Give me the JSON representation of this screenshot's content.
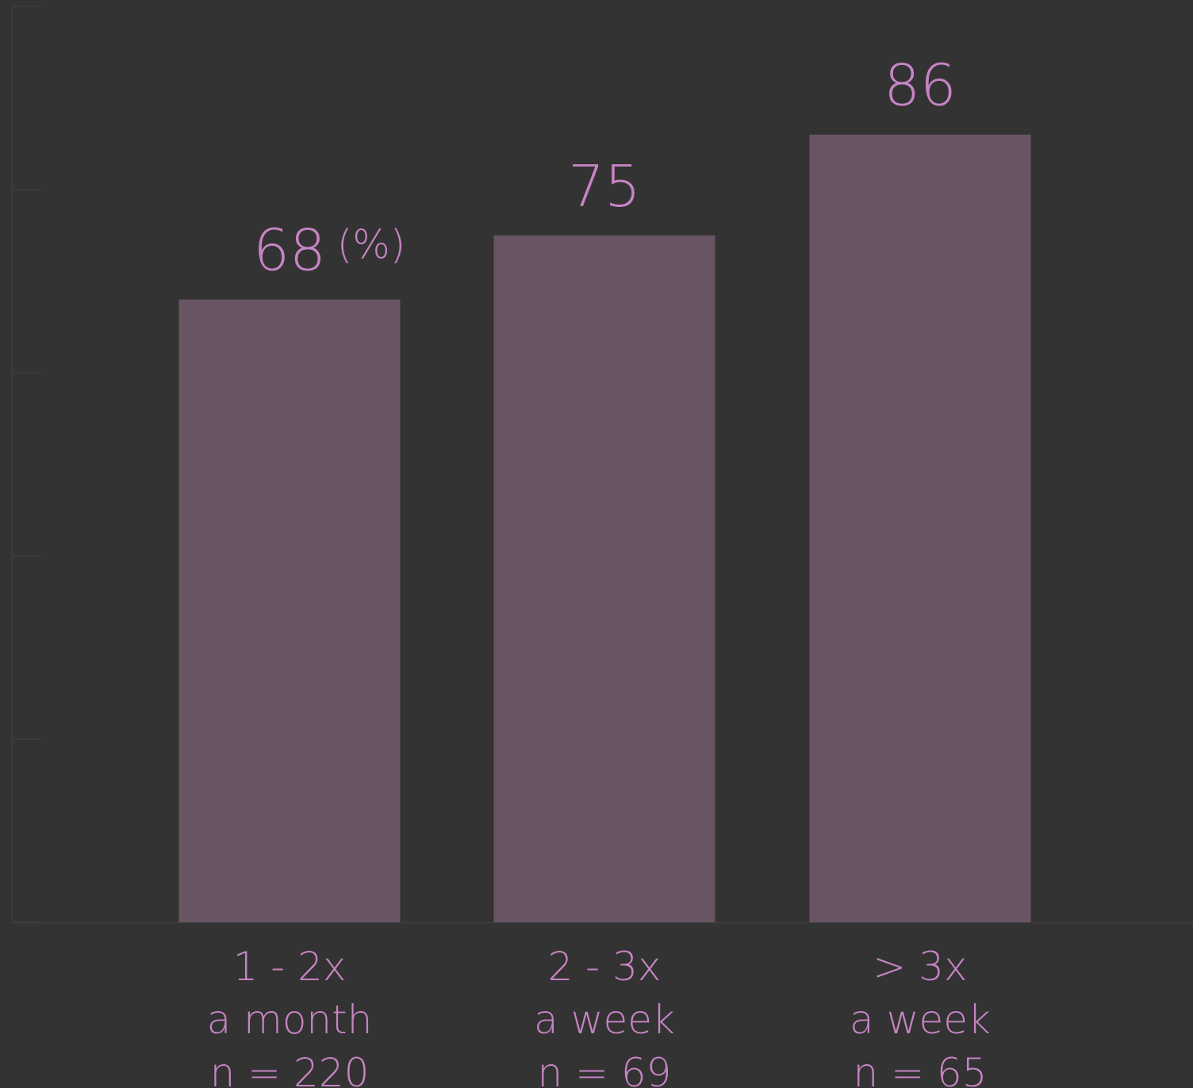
{
  "colors": {
    "background": "#333333",
    "bar": "#695464",
    "text": "#c784c4",
    "axis": "#3e3e3e"
  },
  "chart_data": {
    "type": "bar",
    "categories": [
      "1 - 2x a month",
      "2 - 3x a week",
      "> 3x a week"
    ],
    "category_lines": [
      [
        "1 - 2x",
        "a month",
        "n = 220"
      ],
      [
        "2 - 3x",
        "a week",
        "n = 69"
      ],
      [
        "> 3x",
        "a week",
        "n = 65"
      ]
    ],
    "values": [
      68,
      75,
      86
    ],
    "data_labels": [
      "68",
      "75",
      "86"
    ],
    "unit_label": "(%)",
    "title": "",
    "xlabel": "",
    "ylabel": "",
    "ylim": [
      0,
      100
    ],
    "grid": false,
    "legend": "none"
  }
}
